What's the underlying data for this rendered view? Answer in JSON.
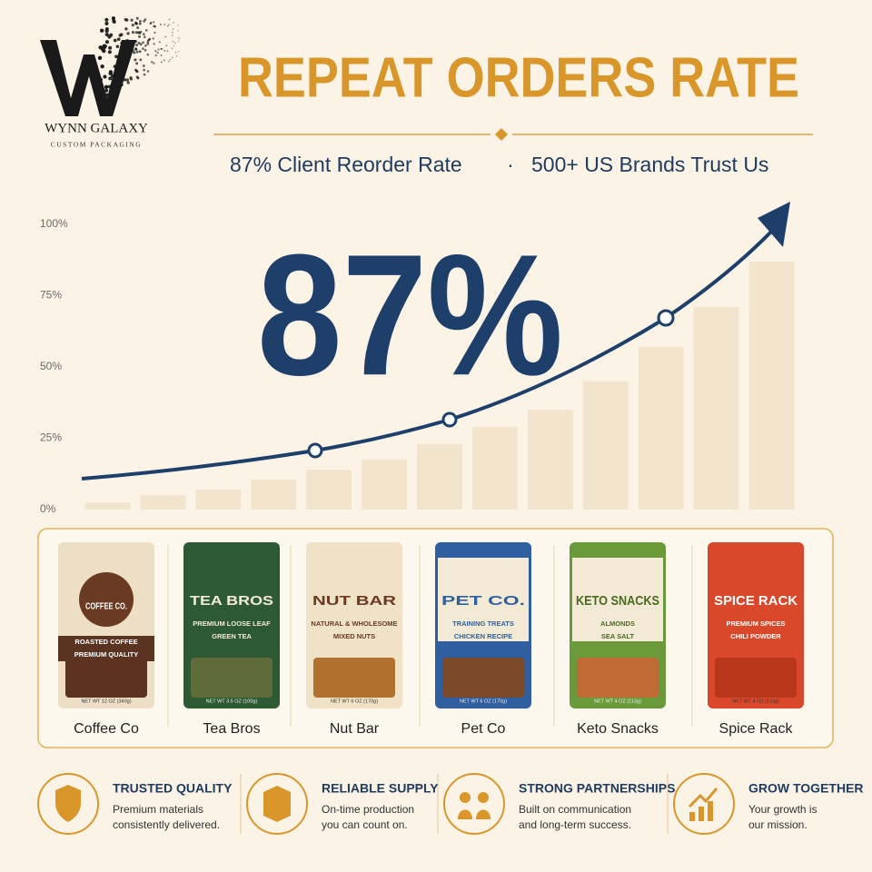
{
  "logo": {
    "name": "WYNN GALAXY",
    "tagline": "CUSTOM PACKAGING"
  },
  "header": {
    "title": "REPEAT ORDERS RATE",
    "stat_1": "87% Client Reorder Rate",
    "separator": "·",
    "stat_2": "500+ US Brands Trust Us"
  },
  "headline_figure": "87%",
  "chart_data": {
    "type": "bar",
    "categories": [
      null,
      null,
      null,
      null,
      null,
      null,
      null,
      null,
      null,
      null,
      null,
      null,
      null
    ],
    "values": [
      2.5,
      5,
      7,
      10.5,
      14,
      17.5,
      23,
      29,
      35,
      45,
      57,
      71,
      87
    ],
    "color": "#f3e4cd",
    "ylim": [
      0,
      100
    ],
    "yticks": [
      {
        "value": 0,
        "label": "0%"
      },
      {
        "value": 25,
        "label": "25%"
      },
      {
        "value": 50,
        "label": "50%"
      },
      {
        "value": 75,
        "label": "75%"
      },
      {
        "value": 100,
        "label": "100%"
      }
    ],
    "grid": false
  },
  "products": [
    {
      "name": "Coffee Co",
      "brand": "COFFEE CO.",
      "lines": [
        "ROASTED COFFEE",
        "PREMIUM QUALITY"
      ],
      "net_weight": "NET WT 12 OZ (340g)"
    },
    {
      "name": "Tea Bros",
      "brand": "TEA BROS",
      "lines": [
        "PREMIUM LOOSE LEAF",
        "GREEN TEA"
      ],
      "net_weight": "NET WT 3.5 OZ (100g)"
    },
    {
      "name": "Nut Bar",
      "brand": "NUT BAR",
      "lines": [
        "NATURAL & WHOLESOME",
        "MIXED NUTS"
      ],
      "net_weight": "NET WT 6 OZ (170g)"
    },
    {
      "name": "Pet Co",
      "brand": "PET CO.",
      "lines": [
        "TRAINING TREATS",
        "CHICKEN RECIPE"
      ],
      "net_weight": "NET WT 6 OZ (170g)"
    },
    {
      "name": "Keto Snacks",
      "brand": "KETO SNACKS",
      "lines": [
        "ALMONDS",
        "SEA SALT"
      ],
      "net_weight": "NET WT 4 OZ (113g)"
    },
    {
      "name": "Spice Rack",
      "brand": "SPICE RACK",
      "lines": [
        "PREMIUM SPICES",
        "CHILI POWDER"
      ],
      "net_weight": "NET WT 4 OZ (113g)"
    }
  ],
  "features": [
    {
      "title": "TRUSTED QUALITY",
      "lines": [
        "Premium materials",
        "consistently delivered."
      ]
    },
    {
      "title": "RELIABLE SUPPLY",
      "lines": [
        "On-time production",
        "you can count on."
      ]
    },
    {
      "title": "STRONG PARTNERSHIPS",
      "lines": [
        "Built on communication",
        "and long-term success."
      ]
    },
    {
      "title": "GROW TOGETHER",
      "lines": [
        "Your growth is",
        "our mission."
      ]
    }
  ]
}
